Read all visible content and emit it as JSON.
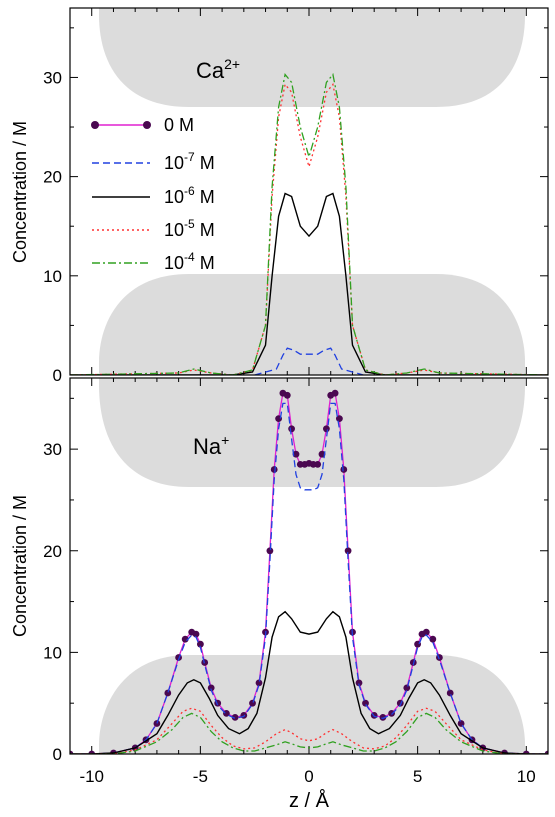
{
  "figure": {
    "xlabel": "z / Å",
    "ylabel": "Concentration / M",
    "xlim": [
      -11,
      11
    ],
    "xticks": [
      -10,
      -5,
      0,
      5,
      10
    ],
    "legend": [
      {
        "key": "s0",
        "base": "0 M",
        "exp": "",
        "unit": "",
        "color": "#e020d0",
        "dash": "",
        "marker": true
      },
      {
        "key": "s7",
        "base": "10",
        "exp": "-7",
        "unit": " M",
        "color": "#2040e0",
        "dash": "7,4",
        "marker": false
      },
      {
        "key": "s6",
        "base": "10",
        "exp": "-6",
        "unit": " M",
        "color": "#000000",
        "dash": "",
        "marker": false
      },
      {
        "key": "s5",
        "base": "10",
        "exp": "-5",
        "unit": " M",
        "color": "#ff3030",
        "dash": "2,3",
        "marker": false
      },
      {
        "key": "s4",
        "base": "10",
        "exp": "-4",
        "unit": " M",
        "color": "#30a020",
        "dash": "8,3,2,3",
        "marker": false
      }
    ],
    "colors": {
      "pore_wall": "#dcdcdc",
      "marker": "#4a0850"
    }
  },
  "chart_data": [
    {
      "type": "line",
      "panel": "top",
      "ion_base": "Ca",
      "ion_sup": "2+",
      "ylabel": "Concentration / M",
      "ylim": [
        0,
        37
      ],
      "yticks": [
        0,
        10,
        20,
        30
      ],
      "series": [
        {
          "key": "s7",
          "name": "10^-7 M",
          "x": [
            -2.5,
            -1.5,
            -1.2,
            -1.0,
            -0.7,
            -0.4,
            0,
            0.4,
            0.7,
            1.0,
            1.2,
            1.5,
            2.5
          ],
          "y": [
            0,
            0.6,
            2.0,
            2.7,
            2.5,
            2.1,
            2.1,
            2.1,
            2.5,
            2.7,
            2.0,
            0.6,
            0
          ]
        },
        {
          "key": "s6",
          "name": "10^-6 M",
          "x": [
            -11,
            -3.5,
            -2.6,
            -2.0,
            -1.7,
            -1.4,
            -1.1,
            -0.8,
            -0.4,
            0,
            0.4,
            0.8,
            1.1,
            1.4,
            1.7,
            2.0,
            2.6,
            3.5,
            11
          ],
          "y": [
            0,
            0,
            0.3,
            3,
            10,
            16,
            18.3,
            18,
            15,
            14,
            15,
            18,
            18.3,
            16,
            10,
            3,
            0.3,
            0,
            0
          ]
        },
        {
          "key": "s5",
          "name": "10^-5 M",
          "x": [
            -11,
            -6.0,
            -5.3,
            -4.5,
            -3.5,
            -2.6,
            -2.0,
            -1.7,
            -1.4,
            -1.1,
            -0.8,
            -0.4,
            0,
            0.4,
            0.8,
            1.1,
            1.4,
            1.7,
            2.0,
            2.6,
            3.5,
            4.5,
            5.3,
            6.0,
            11
          ],
          "y": [
            0,
            0.2,
            0.5,
            0.2,
            0,
            0.5,
            5,
            18,
            26,
            29.3,
            28.5,
            24,
            21,
            24,
            28.5,
            29.3,
            26,
            18,
            5,
            0.5,
            0,
            0.2,
            0.5,
            0.2,
            0
          ]
        },
        {
          "key": "s4",
          "name": "10^-4 M",
          "x": [
            -11,
            -6.0,
            -5.3,
            -4.5,
            -3.5,
            -2.6,
            -2.0,
            -1.7,
            -1.4,
            -1.1,
            -0.8,
            -0.4,
            0,
            0.4,
            0.8,
            1.1,
            1.4,
            1.7,
            2.0,
            2.6,
            3.5,
            4.5,
            5.3,
            6.0,
            11
          ],
          "y": [
            0,
            0.2,
            0.6,
            0.2,
            0,
            0.5,
            5,
            19,
            27,
            30.3,
            29.5,
            25,
            22,
            25,
            29.5,
            30.3,
            27,
            19,
            5,
            0.5,
            0,
            0.2,
            0.6,
            0.2,
            0
          ]
        }
      ]
    },
    {
      "type": "line",
      "panel": "bottom",
      "ion_base": "Na",
      "ion_sup": "+",
      "ylabel": "Concentration / M",
      "ylim": [
        0,
        37
      ],
      "yticks": [
        0,
        10,
        20,
        30
      ],
      "series": [
        {
          "key": "s0",
          "name": "0 M",
          "x": [
            -11,
            -10,
            -9,
            -8,
            -7.5,
            -7,
            -6.5,
            -6,
            -5.7,
            -5.4,
            -5.2,
            -5.0,
            -4.8,
            -4.5,
            -4.2,
            -3.8,
            -3.4,
            -3.0,
            -2.6,
            -2.3,
            -2.0,
            -1.8,
            -1.6,
            -1.4,
            -1.2,
            -1.0,
            -0.8,
            -0.6,
            -0.4,
            -0.2,
            0,
            0.2,
            0.4,
            0.6,
            0.8,
            1.0,
            1.2,
            1.4,
            1.6,
            1.8,
            2.0,
            2.3,
            2.6,
            3.0,
            3.4,
            3.8,
            4.2,
            4.5,
            4.8,
            5.0,
            5.2,
            5.4,
            5.7,
            6,
            6.5,
            7,
            7.5,
            8,
            9,
            10,
            11
          ],
          "y": [
            0,
            0,
            0.1,
            0.6,
            1.4,
            3.0,
            6.0,
            9.5,
            11.3,
            12.0,
            11.8,
            10.8,
            9.0,
            6.5,
            5.0,
            4.0,
            3.6,
            3.8,
            5.0,
            7.0,
            12,
            20,
            28,
            33,
            35.5,
            35.3,
            32,
            29.5,
            28.5,
            28.5,
            28.6,
            28.5,
            28.5,
            29.5,
            32,
            35.3,
            35.5,
            33,
            28,
            20,
            12,
            7.0,
            5.0,
            3.8,
            3.6,
            4.0,
            5.0,
            6.5,
            9.0,
            10.8,
            11.8,
            12.0,
            11.3,
            9.5,
            6.0,
            3.0,
            1.4,
            0.6,
            0.1,
            0,
            0
          ]
        },
        {
          "key": "s7",
          "name": "10^-7 M",
          "x": [
            -11,
            -10,
            -9,
            -8,
            -7.5,
            -7,
            -6.5,
            -6,
            -5.7,
            -5.4,
            -5.2,
            -5.0,
            -4.8,
            -4.5,
            -4.2,
            -3.8,
            -3.4,
            -3.0,
            -2.6,
            -2.3,
            -2.0,
            -1.8,
            -1.6,
            -1.4,
            -1.2,
            -1.0,
            -0.8,
            -0.6,
            -0.4,
            -0.2,
            0,
            0.2,
            0.4,
            0.6,
            0.8,
            1.0,
            1.2,
            1.4,
            1.6,
            1.8,
            2.0,
            2.3,
            2.6,
            3.0,
            3.4,
            3.8,
            4.2,
            4.5,
            4.8,
            5.0,
            5.2,
            5.4,
            5.7,
            6,
            6.5,
            7,
            7.5,
            8,
            9,
            10,
            11
          ],
          "y": [
            0,
            0,
            0.1,
            0.6,
            1.4,
            3.0,
            6.0,
            9.3,
            11.0,
            11.7,
            11.5,
            10.5,
            8.8,
            6.3,
            4.8,
            3.9,
            3.5,
            3.7,
            4.9,
            6.8,
            11.5,
            19,
            27,
            32,
            34.5,
            34.5,
            31,
            27.5,
            26.2,
            26,
            26,
            26,
            26.2,
            27.5,
            31,
            34.5,
            34.5,
            32,
            27,
            19,
            11.5,
            6.8,
            4.9,
            3.7,
            3.5,
            3.9,
            4.8,
            6.3,
            8.8,
            10.5,
            11.5,
            11.7,
            11.0,
            9.3,
            6.0,
            3.0,
            1.4,
            0.6,
            0.1,
            0,
            0
          ]
        },
        {
          "key": "s6",
          "name": "10^-6 M",
          "x": [
            -11,
            -10,
            -9,
            -8,
            -7,
            -6.5,
            -6,
            -5.6,
            -5.3,
            -5.0,
            -4.6,
            -4.2,
            -3.7,
            -3.2,
            -2.8,
            -2.4,
            -2.0,
            -1.7,
            -1.4,
            -1.1,
            -0.8,
            -0.4,
            0,
            0.4,
            0.8,
            1.1,
            1.4,
            1.7,
            2.0,
            2.4,
            2.8,
            3.2,
            3.7,
            4.2,
            4.6,
            5.0,
            5.3,
            5.6,
            6,
            6.5,
            7,
            8,
            9,
            10,
            11
          ],
          "y": [
            0,
            0,
            0.1,
            0.6,
            2.0,
            3.8,
            5.8,
            7.0,
            7.3,
            7.0,
            5.5,
            3.8,
            2.5,
            2.0,
            2.5,
            4.0,
            7.5,
            11.5,
            13.5,
            14.0,
            13.3,
            12.0,
            11.8,
            12.0,
            13.3,
            14.0,
            13.5,
            11.5,
            7.5,
            4.0,
            2.5,
            2.0,
            2.5,
            3.8,
            5.5,
            7.0,
            7.3,
            7.0,
            5.8,
            3.8,
            2.0,
            0.6,
            0.1,
            0,
            0
          ]
        },
        {
          "key": "s5",
          "name": "10^-5 M",
          "x": [
            -11,
            -9,
            -8,
            -7,
            -6.3,
            -5.8,
            -5.4,
            -5.0,
            -4.5,
            -4.0,
            -3.5,
            -3.0,
            -2.5,
            -2.0,
            -1.5,
            -1.1,
            -0.8,
            -0.4,
            0,
            0.4,
            0.8,
            1.1,
            1.5,
            2.0,
            2.5,
            3.0,
            3.5,
            4.0,
            4.5,
            5.0,
            5.4,
            5.8,
            6.3,
            7,
            8,
            9,
            11
          ],
          "y": [
            0,
            0,
            0.4,
            1.4,
            3.0,
            4.2,
            4.5,
            4.2,
            2.8,
            1.6,
            0.8,
            0.5,
            0.6,
            1.2,
            2.0,
            2.4,
            2.1,
            1.5,
            1.3,
            1.5,
            2.1,
            2.4,
            2.0,
            1.2,
            0.6,
            0.5,
            0.8,
            1.6,
            2.8,
            4.2,
            4.5,
            4.2,
            3.0,
            1.4,
            0.4,
            0,
            0
          ]
        },
        {
          "key": "s4",
          "name": "10^-4 M",
          "x": [
            -11,
            -9,
            -8,
            -7,
            -6.3,
            -5.8,
            -5.4,
            -5.0,
            -4.5,
            -4.0,
            -3.5,
            -3.0,
            -2.5,
            -2.0,
            -1.5,
            -1.1,
            -0.8,
            -0.4,
            0,
            0.4,
            0.8,
            1.1,
            1.5,
            2.0,
            2.5,
            3.0,
            3.5,
            4.0,
            4.5,
            5.0,
            5.4,
            5.8,
            6.3,
            7,
            8,
            9,
            11
          ],
          "y": [
            0,
            0,
            0.3,
            1.2,
            2.4,
            3.6,
            4.0,
            3.6,
            2.2,
            1.2,
            0.6,
            0.3,
            0.3,
            0.6,
            0.9,
            1.2,
            1.0,
            0.7,
            0.6,
            0.7,
            1.0,
            1.2,
            0.9,
            0.6,
            0.3,
            0.3,
            0.6,
            1.2,
            2.2,
            3.6,
            4.0,
            3.6,
            2.4,
            1.2,
            0.3,
            0,
            0
          ]
        }
      ]
    }
  ]
}
